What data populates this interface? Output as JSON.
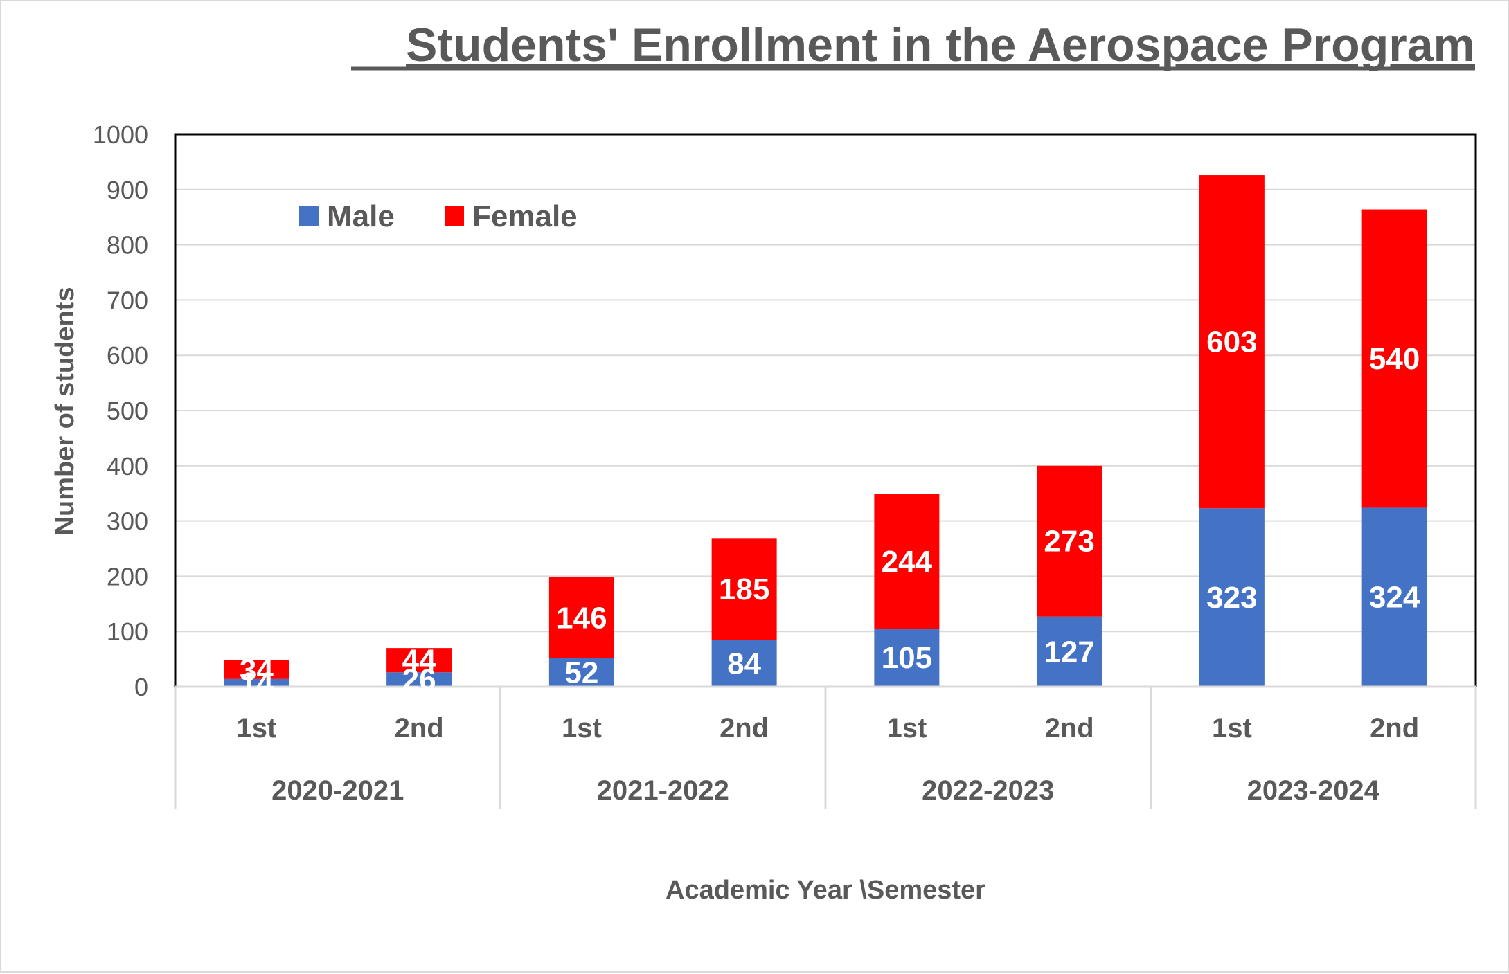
{
  "chart_data": {
    "type": "bar",
    "stacked": true,
    "title": "Students' Enrollment in the Aerospace Program",
    "xlabel": "Academic Year \\Semester",
    "ylabel": "Number of students",
    "ylim": [
      0,
      1000
    ],
    "yticks": [
      0,
      100,
      200,
      300,
      400,
      500,
      600,
      700,
      800,
      900,
      1000
    ],
    "grid": true,
    "legend_position": "top-left",
    "groups": [
      "2020-2021",
      "2021-2022",
      "2022-2023",
      "2023-2024"
    ],
    "categories": [
      "1st",
      "2nd",
      "1st",
      "2nd",
      "1st",
      "2nd",
      "1st",
      "2nd"
    ],
    "series": [
      {
        "name": "Male",
        "color": "#4472c4",
        "values": [
          14,
          26,
          52,
          84,
          105,
          127,
          323,
          324
        ]
      },
      {
        "name": "Female",
        "color": "#ff0000",
        "values": [
          34,
          44,
          146,
          185,
          244,
          273,
          603,
          540
        ]
      }
    ]
  }
}
